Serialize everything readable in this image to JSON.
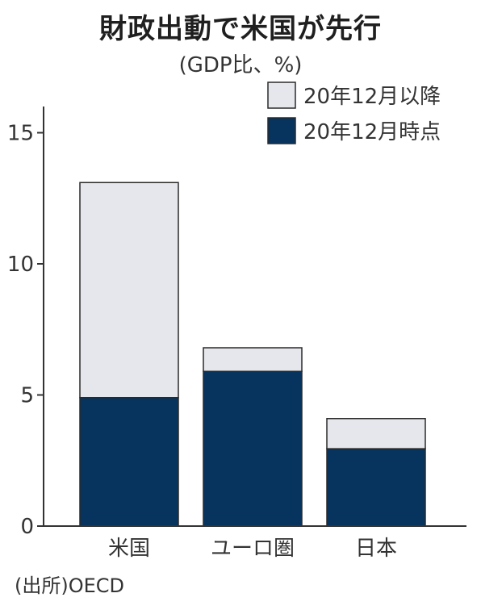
{
  "header": {
    "title": "財政出動で米国が先行",
    "subtitle": "(GDP比、%)"
  },
  "footer": {
    "source": "(出所)OECD"
  },
  "colors": {
    "after": "#e6e7ec",
    "at": "#06345e",
    "axis": "#333333",
    "bar_outline": "#2a2a2a"
  },
  "chart_data": {
    "type": "bar",
    "stacked": true,
    "categories": [
      "米国",
      "ユーロ圏",
      "日本"
    ],
    "series": [
      {
        "name": "20年12月時点",
        "values": [
          4.9,
          5.9,
          2.95
        ],
        "color": "#06345e"
      },
      {
        "name": "20年12月以降",
        "values": [
          8.2,
          0.9,
          1.15
        ],
        "color": "#e6e7ec"
      }
    ],
    "ylim": [
      0,
      16
    ],
    "yticks": [
      0,
      5,
      10,
      15
    ],
    "ytick_labels": [
      "0",
      "5",
      "10",
      "15"
    ],
    "legend": {
      "position": "top-right",
      "entries": [
        {
          "label": "20年12月以降",
          "color": "#e6e7ec"
        },
        {
          "label": "20年12月時点",
          "color": "#06345e"
        }
      ]
    },
    "grid": false
  }
}
